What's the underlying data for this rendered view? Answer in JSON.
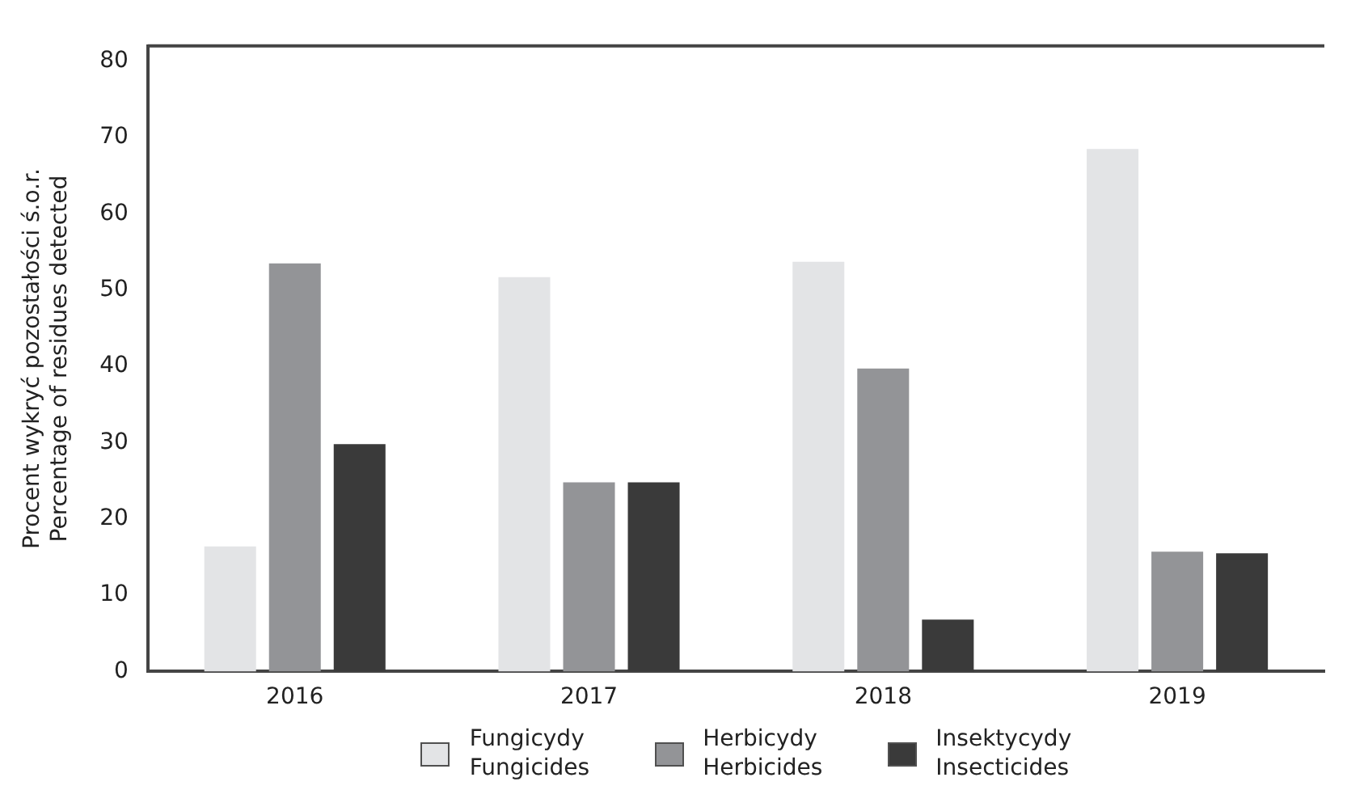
{
  "chart_data": {
    "type": "bar",
    "ylabel": "Procent wykryć pozostałości ś.o.r.\nPercentage of residues detected",
    "categories": [
      "2016",
      "2017",
      "2018",
      "2019"
    ],
    "series": [
      {
        "name": "Fungicydy\nFungicides",
        "color": "#e3e4e6",
        "values": [
          16.4,
          51.7,
          53.7,
          68.5
        ]
      },
      {
        "name": "Herbicydy\nHerbicides",
        "color": "#939497",
        "values": [
          53.5,
          24.8,
          39.7,
          15.7
        ]
      },
      {
        "name": "Insektycydy\nInsecticides",
        "color": "#3a3a3a",
        "values": [
          29.8,
          24.8,
          6.8,
          15.5
        ]
      }
    ],
    "ylim": [
      0,
      82
    ],
    "yticks": [
      0,
      10,
      20,
      30,
      40,
      50,
      60,
      70,
      80
    ],
    "grid": false,
    "legend": "bottom"
  }
}
